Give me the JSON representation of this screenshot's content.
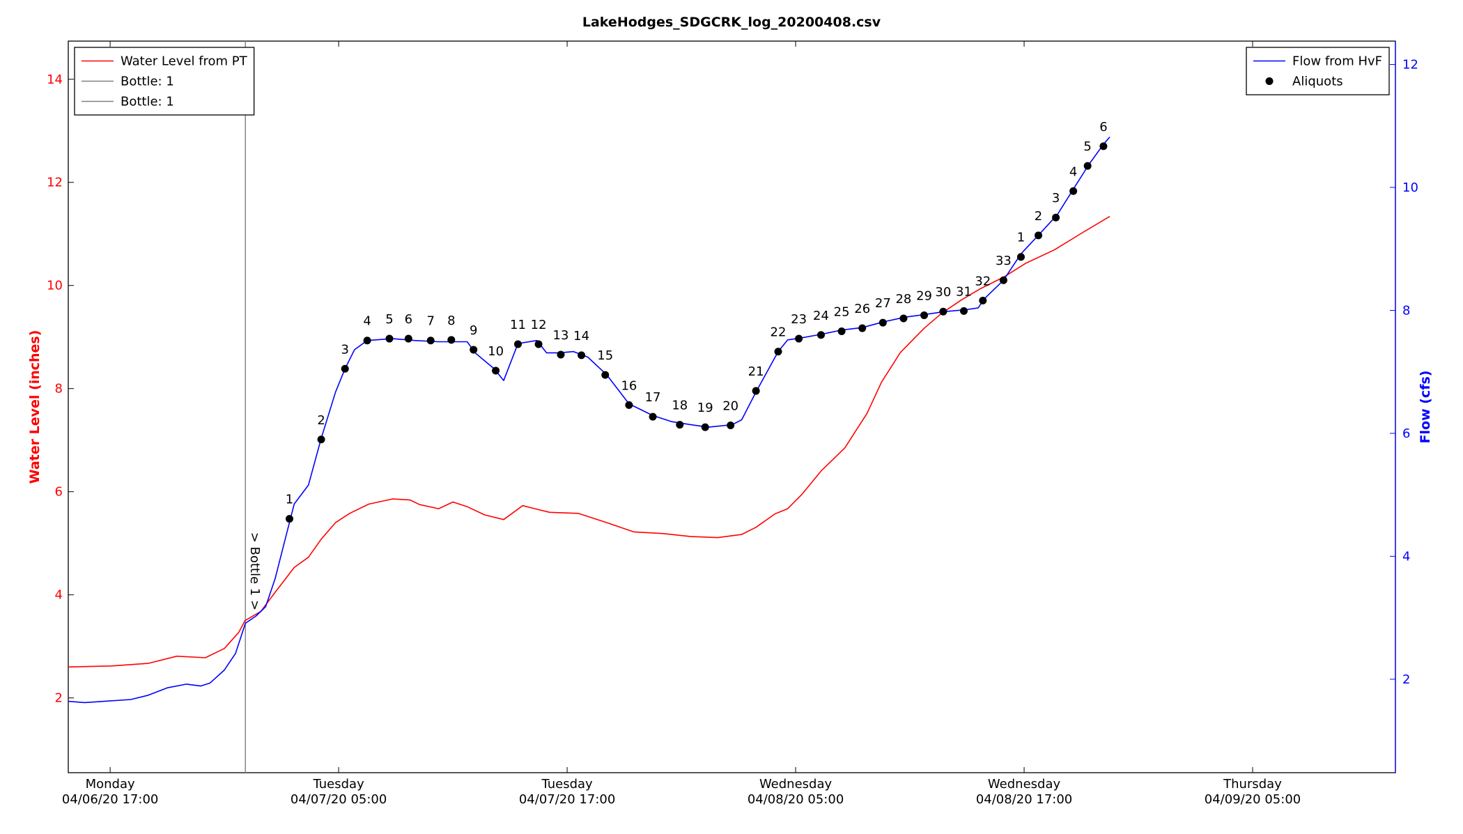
{
  "chart_data": {
    "type": "line",
    "title": "LakeHodges_SDGCRK_log_20200408.csv",
    "ylabel": "Water Level (inches)",
    "y2label": "Flow (cfs)",
    "xlim": [
      "2020-04-06T14:48",
      "2020-04-09T12:30"
    ],
    "xticks": [
      {
        "value": "2020-04-06T17:00",
        "label": "Monday\n04/06/20 17:00"
      },
      {
        "value": "2020-04-07T05:00",
        "label": "Tuesday\n04/07/20 05:00"
      },
      {
        "value": "2020-04-07T17:00",
        "label": "Tuesday\n04/07/20 17:00"
      },
      {
        "value": "2020-04-08T05:00",
        "label": "Wednesday\n04/08/20 05:00"
      },
      {
        "value": "2020-04-08T17:00",
        "label": "Wednesday\n04/08/20 17:00"
      },
      {
        "value": "2020-04-09T05:00",
        "label": "Thursday\n04/09/20 05:00"
      }
    ],
    "ylim": [
      0.55,
      14.74
    ],
    "yticks": [
      2,
      4,
      6,
      8,
      10,
      12,
      14
    ],
    "y2lim": [
      0.48,
      12.38
    ],
    "y2ticks": [
      2,
      4,
      6,
      8,
      10,
      12
    ],
    "legend": {
      "y": "upper left",
      "y2": "upper right"
    },
    "series": [
      {
        "name": "Water Level from PT",
        "color": "#ff0000",
        "axis": "y",
        "x": [
          "2020-04-06T14:48",
          "2020-04-06T17:05",
          "2020-04-06T19:00",
          "2020-04-06T20:30",
          "2020-04-06T22:00",
          "2020-04-06T23:00",
          "2020-04-06T23:45",
          "2020-04-07T00:05",
          "2020-04-07T00:55",
          "2020-04-07T01:40",
          "2020-04-07T02:40",
          "2020-04-07T03:25",
          "2020-04-07T04:05",
          "2020-04-07T04:50",
          "2020-04-07T05:35",
          "2020-04-07T06:35",
          "2020-04-07T07:50",
          "2020-04-07T08:45",
          "2020-04-07T09:15",
          "2020-04-07T10:15",
          "2020-04-07T11:00",
          "2020-04-07T11:45",
          "2020-04-07T12:40",
          "2020-04-07T13:40",
          "2020-04-07T14:40",
          "2020-04-07T15:25",
          "2020-04-07T16:05",
          "2020-04-07T17:35",
          "2020-04-07T19:05",
          "2020-04-07T20:30",
          "2020-04-07T22:00",
          "2020-04-07T23:30",
          "2020-04-08T00:55",
          "2020-04-08T02:10",
          "2020-04-08T02:55",
          "2020-04-08T03:55",
          "2020-04-08T04:35",
          "2020-04-08T05:20",
          "2020-04-08T06:20",
          "2020-04-08T07:35",
          "2020-04-08T08:45",
          "2020-04-08T09:30",
          "2020-04-08T10:30",
          "2020-04-08T11:45",
          "2020-04-08T12:40",
          "2020-04-08T13:40",
          "2020-04-08T14:40",
          "2020-04-08T15:55",
          "2020-04-08T17:05",
          "2020-04-08T18:35",
          "2020-04-08T20:00",
          "2020-04-08T21:30"
        ],
        "values": [
          2.6,
          2.62,
          2.67,
          2.81,
          2.78,
          2.96,
          3.27,
          3.5,
          3.68,
          4.05,
          4.53,
          4.73,
          5.08,
          5.4,
          5.58,
          5.76,
          5.86,
          5.84,
          5.75,
          5.67,
          5.8,
          5.71,
          5.55,
          5.46,
          5.73,
          5.66,
          5.6,
          5.58,
          5.4,
          5.22,
          5.19,
          5.13,
          5.11,
          5.17,
          5.31,
          5.57,
          5.67,
          5.95,
          6.4,
          6.85,
          7.52,
          8.12,
          8.7,
          9.17,
          9.46,
          9.71,
          9.93,
          10.16,
          10.43,
          10.69,
          11.01,
          11.34
        ]
      },
      {
        "name": "Flow from HvF",
        "color": "#0000ff",
        "axis": "y2",
        "x": [
          "2020-04-06T14:48",
          "2020-04-06T15:40",
          "2020-04-06T16:40",
          "2020-04-06T18:05",
          "2020-04-06T19:00",
          "2020-04-06T20:00",
          "2020-04-06T21:00",
          "2020-04-06T21:45",
          "2020-04-06T22:15",
          "2020-04-06T23:00",
          "2020-04-06T23:35",
          "2020-04-07T00:06",
          "2020-04-07T00:40",
          "2020-04-07T01:10",
          "2020-04-07T01:40",
          "2020-04-07T02:10",
          "2020-04-07T02:40",
          "2020-04-07T03:25",
          "2020-04-07T04:05",
          "2020-04-07T04:50",
          "2020-04-07T05:20",
          "2020-04-07T05:50",
          "2020-04-07T06:30",
          "2020-04-07T07:50",
          "2020-04-07T09:00",
          "2020-04-07T10:15",
          "2020-04-07T11:45",
          "2020-04-07T12:10",
          "2020-04-07T13:10",
          "2020-04-07T13:40",
          "2020-04-07T14:25",
          "2020-04-07T15:25",
          "2020-04-07T15:55",
          "2020-04-07T16:35",
          "2020-04-07T17:20",
          "2020-04-07T18:05",
          "2020-04-07T19:05",
          "2020-04-07T20:15",
          "2020-04-07T21:30",
          "2020-04-07T22:30",
          "2020-04-07T23:30",
          "2020-04-08T00:25",
          "2020-04-08T01:40",
          "2020-04-08T02:10",
          "2020-04-08T02:55",
          "2020-04-08T04:05",
          "2020-04-08T04:35",
          "2020-04-08T05:15",
          "2020-04-08T06:20",
          "2020-04-08T07:25",
          "2020-04-08T08:30",
          "2020-04-08T09:35",
          "2020-04-08T10:45",
          "2020-04-08T11:45",
          "2020-04-08T12:50",
          "2020-04-08T13:55",
          "2020-04-08T14:35",
          "2020-04-08T14:55",
          "2020-04-08T15:55",
          "2020-04-08T16:50",
          "2020-04-08T17:50",
          "2020-04-08T18:45",
          "2020-04-08T19:35",
          "2020-04-08T20:25",
          "2020-04-08T21:10",
          "2020-04-08T21:30"
        ],
        "values": [
          1.64,
          1.62,
          1.64,
          1.67,
          1.74,
          1.86,
          1.92,
          1.89,
          1.94,
          2.15,
          2.42,
          2.91,
          3.03,
          3.18,
          3.64,
          4.25,
          4.85,
          5.16,
          5.92,
          6.67,
          7.05,
          7.36,
          7.51,
          7.54,
          7.51,
          7.49,
          7.49,
          7.31,
          7.05,
          6.86,
          7.46,
          7.51,
          7.31,
          7.31,
          7.33,
          7.24,
          6.95,
          6.48,
          6.29,
          6.19,
          6.14,
          6.1,
          6.14,
          6.22,
          6.67,
          7.33,
          7.52,
          7.55,
          7.61,
          7.68,
          7.72,
          7.81,
          7.89,
          7.93,
          7.98,
          8.01,
          8.04,
          8.19,
          8.49,
          8.92,
          9.25,
          9.56,
          9.97,
          10.38,
          10.7,
          10.82
        ]
      },
      {
        "name": "Aliquots",
        "type": "scatter",
        "color": "#000000",
        "axis": "y2",
        "x": [
          "2020-04-07T02:25",
          "2020-04-07T04:05",
          "2020-04-07T05:20",
          "2020-04-07T06:30",
          "2020-04-07T07:40",
          "2020-04-07T08:40",
          "2020-04-07T09:50",
          "2020-04-07T10:55",
          "2020-04-07T12:05",
          "2020-04-07T13:15",
          "2020-04-07T14:25",
          "2020-04-07T15:30",
          "2020-04-07T16:40",
          "2020-04-07T17:45",
          "2020-04-07T19:00",
          "2020-04-07T20:15",
          "2020-04-07T21:30",
          "2020-04-07T22:55",
          "2020-04-08T00:15",
          "2020-04-08T01:35",
          "2020-04-08T02:55",
          "2020-04-08T04:05",
          "2020-04-08T05:10",
          "2020-04-08T06:20",
          "2020-04-08T07:25",
          "2020-04-08T08:30",
          "2020-04-08T09:35",
          "2020-04-08T10:40",
          "2020-04-08T11:45",
          "2020-04-08T12:45",
          "2020-04-08T13:50",
          "2020-04-08T14:50",
          "2020-04-08T15:55",
          "2020-04-08T16:50",
          "2020-04-08T17:45",
          "2020-04-08T18:40",
          "2020-04-08T19:35",
          "2020-04-08T20:20",
          "2020-04-08T21:10"
        ],
        "values": [
          4.61,
          5.9,
          7.05,
          7.51,
          7.54,
          7.54,
          7.51,
          7.52,
          7.36,
          7.02,
          7.45,
          7.45,
          7.28,
          7.27,
          6.95,
          6.46,
          6.27,
          6.14,
          6.1,
          6.13,
          6.69,
          7.33,
          7.54,
          7.6,
          7.66,
          7.71,
          7.8,
          7.87,
          7.92,
          7.98,
          7.99,
          8.16,
          8.49,
          8.87,
          9.22,
          9.51,
          9.94,
          10.35,
          10.67
        ],
        "labels": [
          "1",
          "2",
          "3",
          "4",
          "5",
          "6",
          "7",
          "8",
          "9",
          "10",
          "11",
          "12",
          "13",
          "14",
          "15",
          "16",
          "17",
          "18",
          "19",
          "20",
          "21",
          "22",
          "23",
          "24",
          "25",
          "26",
          "27",
          "28",
          "29",
          "30",
          "31",
          "32",
          "33",
          "1",
          "2",
          "3",
          "4",
          "5",
          "6"
        ]
      }
    ],
    "vlines": [
      {
        "name": "Bottle: 1",
        "x": "2020-04-07T00:06",
        "color": "#808080"
      },
      {
        "name": "Bottle: 1",
        "x": "2020-04-07T00:06",
        "color": "#808080"
      }
    ],
    "annotations": [
      {
        "text": "> Bottle 1 >"
      }
    ]
  }
}
